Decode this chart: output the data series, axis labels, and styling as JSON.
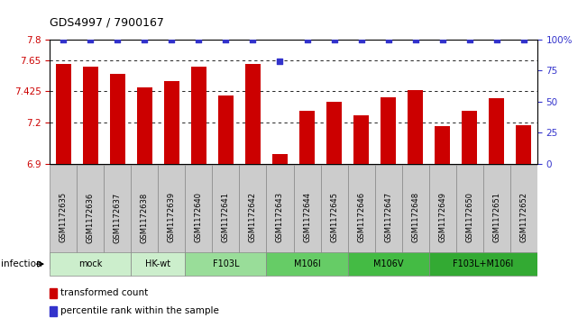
{
  "title": "GDS4997 / 7900167",
  "samples": [
    "GSM1172635",
    "GSM1172636",
    "GSM1172637",
    "GSM1172638",
    "GSM1172639",
    "GSM1172640",
    "GSM1172641",
    "GSM1172642",
    "GSM1172643",
    "GSM1172644",
    "GSM1172645",
    "GSM1172646",
    "GSM1172647",
    "GSM1172648",
    "GSM1172649",
    "GSM1172650",
    "GSM1172651",
    "GSM1172652"
  ],
  "bar_values": [
    7.62,
    7.6,
    7.55,
    7.45,
    7.5,
    7.6,
    7.39,
    7.62,
    6.97,
    7.28,
    7.35,
    7.25,
    7.38,
    7.43,
    7.17,
    7.28,
    7.37,
    7.18
  ],
  "dot_values": [
    100,
    100,
    100,
    100,
    100,
    100,
    100,
    100,
    82,
    100,
    100,
    100,
    100,
    100,
    100,
    100,
    100,
    100
  ],
  "ylim_left": [
    6.9,
    7.8
  ],
  "ylim_right": [
    0,
    100
  ],
  "yticks_left": [
    6.9,
    7.2,
    7.425,
    7.65,
    7.8
  ],
  "ytick_labels_left": [
    "6.9",
    "7.2",
    "7.425",
    "7.65",
    "7.8"
  ],
  "yticks_right": [
    0,
    25,
    50,
    75,
    100
  ],
  "ytick_labels_right": [
    "0",
    "25",
    "50",
    "75",
    "100%"
  ],
  "grid_values": [
    7.2,
    7.425,
    7.65
  ],
  "bar_color": "#cc0000",
  "dot_color": "#3333cc",
  "groups": [
    {
      "label": "mock",
      "start": 0,
      "end": 3,
      "color": "#cceecc"
    },
    {
      "label": "HK-wt",
      "start": 3,
      "end": 5,
      "color": "#cceecc"
    },
    {
      "label": "F103L",
      "start": 5,
      "end": 8,
      "color": "#99dd99"
    },
    {
      "label": "M106I",
      "start": 8,
      "end": 11,
      "color": "#66cc66"
    },
    {
      "label": "M106V",
      "start": 11,
      "end": 14,
      "color": "#44bb44"
    },
    {
      "label": "F103L+M106I",
      "start": 14,
      "end": 18,
      "color": "#33aa33"
    }
  ],
  "infection_label": "infection",
  "legend_bar_label": "transformed count",
  "legend_dot_label": "percentile rank within the sample",
  "title_fontsize": 9,
  "axis_label_color_left": "#cc0000",
  "axis_label_color_right": "#3333cc",
  "sample_box_color": "#cccccc",
  "sample_box_edge": "#888888"
}
